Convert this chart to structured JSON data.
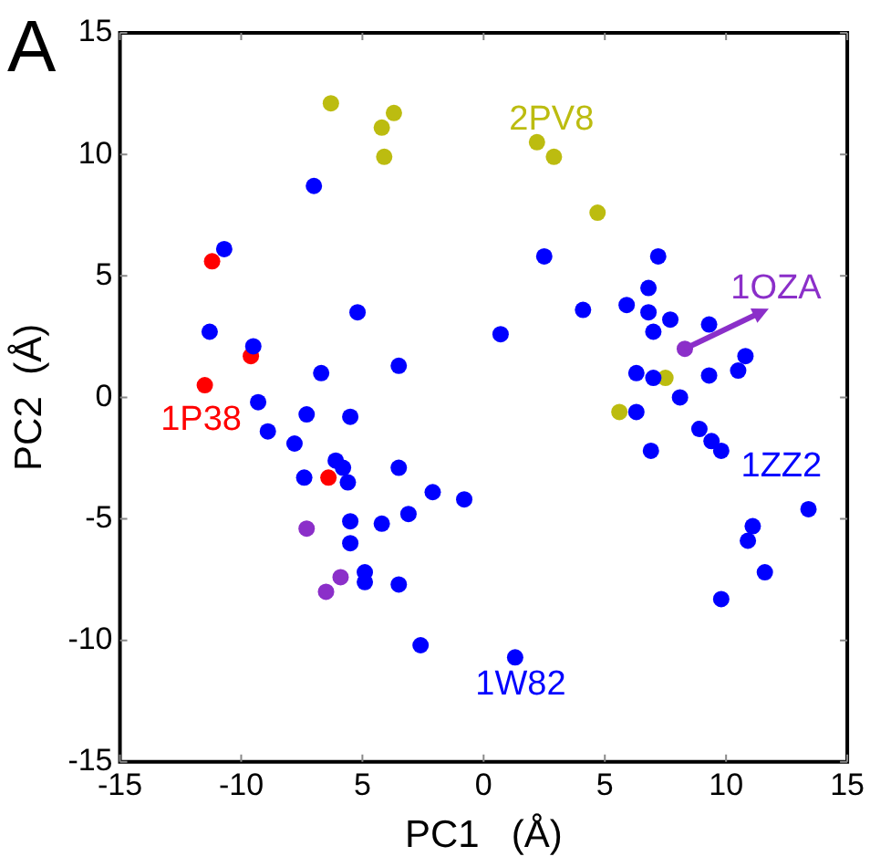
{
  "chart_data": {
    "type": "scatter",
    "xlabel": "PC1   (Å)",
    "ylabel": "PC2  (Å)",
    "marker": "circle",
    "grid": false,
    "legend": false,
    "xlim": [
      -15,
      15
    ],
    "xticks": [
      -15,
      -10,
      {
        "value": -5,
        "label": "5"
      },
      0,
      5,
      10,
      15
    ],
    "ylim": [
      -15,
      15
    ],
    "yticks": [
      -15,
      -10,
      -5,
      0,
      5,
      10,
      15
    ],
    "annotations": [
      "A",
      {
        "text": "1P38",
        "x": -11.5,
        "y": 0.5
      },
      {
        "text": "2PV8",
        "x": 2.2,
        "y": 10.5
      },
      {
        "text": "1OZA",
        "x": 8.3,
        "y": 2.0
      },
      {
        "text": "1ZZ2",
        "x": 9.8,
        "y": -2.2
      },
      {
        "text": "1W82",
        "x": 1.3,
        "y": -10.7
      }
    ],
    "series": [
      {
        "color": "#0000ff",
        "x": [
          -7.0,
          -10.7,
          -5.2,
          -11.3,
          -9.5,
          -6.7,
          -3.5,
          2.5,
          7.2,
          6.8,
          4.1,
          5.9,
          6.8,
          7.7,
          7.0,
          9.3,
          0.7,
          10.8,
          10.5,
          6.3,
          7.0,
          9.3,
          8.1,
          6.3,
          8.9,
          9.4,
          9.8,
          6.9,
          -0.8,
          13.4,
          11.1,
          10.9,
          11.6,
          9.8,
          1.3,
          -9.3,
          -8.9,
          -7.3,
          -5.5,
          -7.8,
          -6.1,
          -5.8,
          -5.6,
          -7.4,
          -3.5,
          -2.1,
          -5.5,
          -5.5,
          -4.2,
          -3.1,
          -4.9,
          -4.9,
          -3.5,
          -2.6
        ],
        "values": [
          8.7,
          6.1,
          3.5,
          2.7,
          2.1,
          1.0,
          1.3,
          5.8,
          5.8,
          4.5,
          3.6,
          3.8,
          3.5,
          3.2,
          2.7,
          3.0,
          2.6,
          1.7,
          1.1,
          1.0,
          0.8,
          0.9,
          0.0,
          -0.6,
          -1.3,
          -1.8,
          -2.2,
          -2.2,
          -4.2,
          -4.6,
          -5.3,
          -5.9,
          -7.2,
          -8.3,
          -10.7,
          -0.2,
          -1.4,
          -0.7,
          -0.8,
          -1.9,
          -2.6,
          -2.9,
          -3.5,
          -3.3,
          -2.9,
          -3.9,
          -5.1,
          -6.0,
          -5.2,
          -4.8,
          -7.2,
          -7.6,
          -7.7,
          -10.2
        ]
      },
      {
        "color": "#bcbc10",
        "x": [
          -6.3,
          -3.7,
          -4.2,
          -4.1,
          2.2,
          2.9,
          4.7,
          7.5,
          5.6
        ],
        "values": [
          12.1,
          11.7,
          11.1,
          9.9,
          10.5,
          9.9,
          7.6,
          0.8,
          -0.6
        ]
      },
      {
        "color": "#ff0000",
        "x": [
          -11.2,
          -9.6,
          -11.5,
          -6.4
        ],
        "values": [
          5.6,
          1.7,
          0.5,
          -3.3
        ]
      },
      {
        "color": "#8b2fc9",
        "x": [
          8.3,
          -7.3,
          -5.9,
          -6.5
        ],
        "values": [
          2.0,
          -5.4,
          -7.4,
          -8.0
        ]
      }
    ]
  }
}
